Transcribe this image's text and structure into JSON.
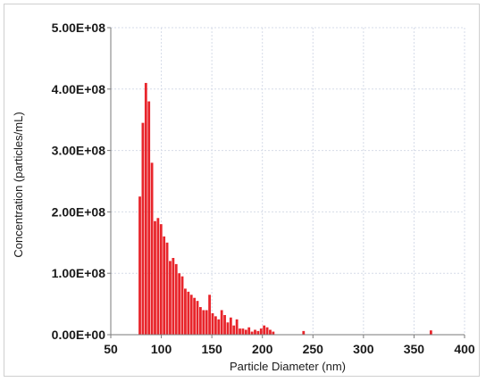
{
  "chart_data": {
    "type": "bar",
    "title": "",
    "xlabel": "Particle Diameter (nm)",
    "ylabel": "Concentration (particles/mL)",
    "xlim": [
      50,
      400
    ],
    "ylim": [
      0,
      500000000
    ],
    "xticks": [
      50,
      100,
      150,
      200,
      250,
      300,
      350,
      400
    ],
    "xtick_labels": [
      "50",
      "100",
      "150",
      "200",
      "250",
      "300",
      "350",
      "400"
    ],
    "yticks": [
      0,
      100000000,
      200000000,
      300000000,
      400000000,
      500000000
    ],
    "ytick_labels": [
      "0.00E+00",
      "1.00E+08",
      "2.00E+08",
      "3.00E+08",
      "4.00E+08",
      "5.00E+08"
    ],
    "grid": true,
    "bar_color": "#e8252b",
    "bin_width_nm": 3,
    "x": [
      79,
      82,
      85,
      88,
      91,
      94,
      97,
      100,
      103,
      106,
      109,
      112,
      115,
      118,
      121,
      124,
      127,
      130,
      133,
      136,
      139,
      142,
      145,
      148,
      151,
      154,
      157,
      160,
      163,
      166,
      169,
      172,
      175,
      178,
      181,
      184,
      187,
      190,
      193,
      196,
      199,
      202,
      205,
      208,
      211,
      241,
      367
    ],
    "values": [
      225000000,
      345000000,
      410000000,
      380000000,
      280000000,
      185000000,
      190000000,
      180000000,
      160000000,
      150000000,
      120000000,
      125000000,
      115000000,
      100000000,
      95000000,
      75000000,
      70000000,
      65000000,
      60000000,
      55000000,
      45000000,
      40000000,
      40000000,
      65000000,
      35000000,
      30000000,
      25000000,
      40000000,
      32000000,
      20000000,
      28000000,
      15000000,
      25000000,
      10000000,
      10000000,
      8000000,
      12000000,
      5000000,
      8000000,
      6000000,
      10000000,
      15000000,
      12000000,
      8000000,
      5000000,
      6000000,
      7000000
    ]
  },
  "colors": {
    "grid": "#d6dbe8",
    "axis": "#7a7a7a"
  }
}
